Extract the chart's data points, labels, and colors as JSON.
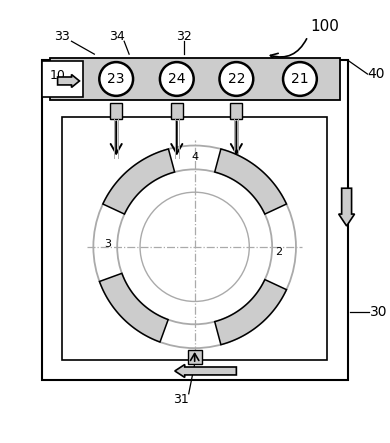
{
  "bg_color": "#ffffff",
  "line_color": "#000000",
  "gray_color": "#aaaaaa",
  "light_gray": "#cccccc",
  "label_100": "100",
  "label_40": "40",
  "label_30": "30",
  "label_10": "10",
  "label_31": "31",
  "label_33": "33",
  "label_34": "34",
  "label_32": "32",
  "valve_labels": [
    "23",
    "24",
    "22",
    "21"
  ],
  "sector_labels": [
    "4",
    "3",
    "2"
  ],
  "figsize": [
    3.9,
    4.43
  ],
  "dpi": 100
}
